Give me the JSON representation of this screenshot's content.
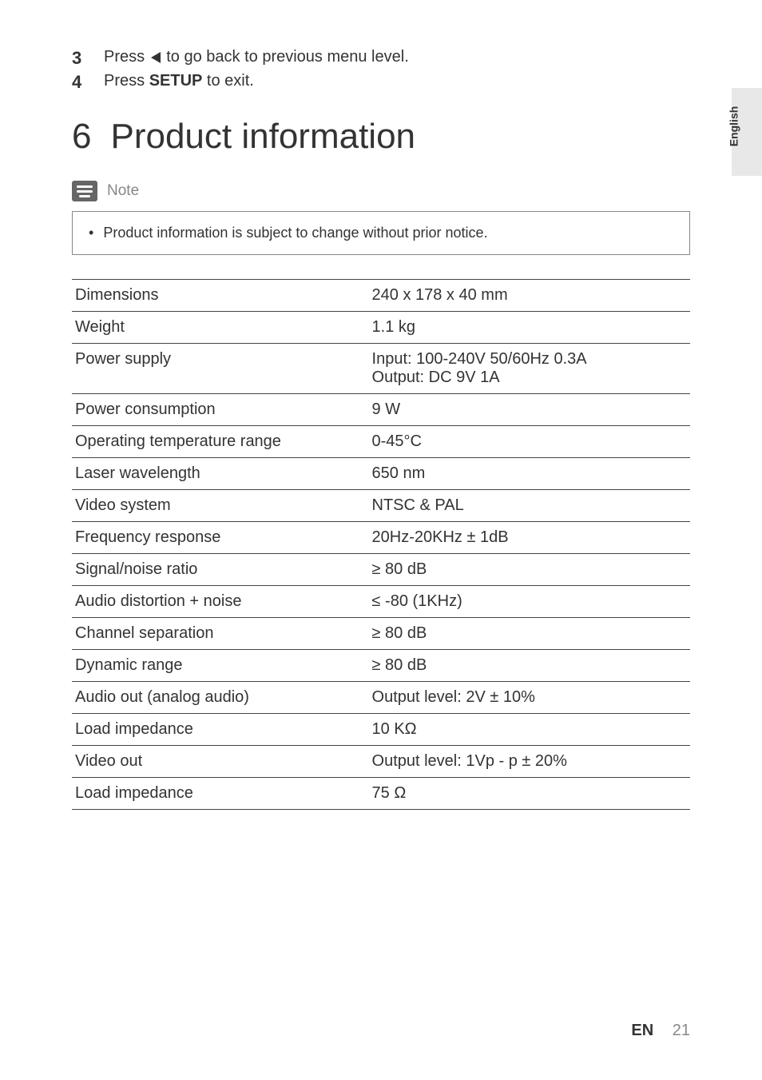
{
  "side_tab": {
    "label": "English"
  },
  "instructions": [
    {
      "num": "3",
      "prefix": "Press ",
      "symbol": "arrow-left",
      "suffix": " to go back to previous menu level."
    },
    {
      "num": "4",
      "prefix": "Press ",
      "bold": "SETUP",
      "suffix": " to exit."
    }
  ],
  "heading": {
    "number": "6",
    "title": "Product information"
  },
  "note": {
    "label": "Note",
    "items": [
      "Product information is subject to change without prior notice."
    ]
  },
  "spec_table": {
    "rows": [
      {
        "label": "Dimensions",
        "value": "240 x 178 x 40 mm"
      },
      {
        "label": "Weight",
        "value": "1.1 kg"
      },
      {
        "label": "Power supply",
        "value": "Input: 100-240V 50/60Hz 0.3A\nOutput: DC 9V 1A"
      },
      {
        "label": "Power consumption",
        "value": "9 W"
      },
      {
        "label": "Operating temperature range",
        "value": "0-45°C"
      },
      {
        "label": "Laser wavelength",
        "value": "650 nm"
      },
      {
        "label": "Video system",
        "value": "NTSC & PAL"
      },
      {
        "label": "Frequency response",
        "value": "20Hz-20KHz ± 1dB"
      },
      {
        "label": "Signal/noise ratio",
        "value": "≥  80 dB"
      },
      {
        "label": "Audio distortion + noise",
        "value": "≤  -80 (1KHz)"
      },
      {
        "label": "Channel separation",
        "value": "≥  80 dB"
      },
      {
        "label": "Dynamic range",
        "value": "≥  80 dB"
      },
      {
        "label": "Audio out (analog audio)",
        "value": "Output level: 2V ± 10%"
      },
      {
        "label": "Load impedance",
        "value": "10 KΩ"
      },
      {
        "label": "Video out",
        "value": "Output level: 1Vp - p ± 20%"
      },
      {
        "label": "Load impedance",
        "value": "75 Ω"
      }
    ]
  },
  "footer": {
    "lang": "EN",
    "page": "21"
  },
  "colors": {
    "text": "#333333",
    "muted": "#888888",
    "tab_bg": "#e8e8e8",
    "border": "#444444"
  }
}
